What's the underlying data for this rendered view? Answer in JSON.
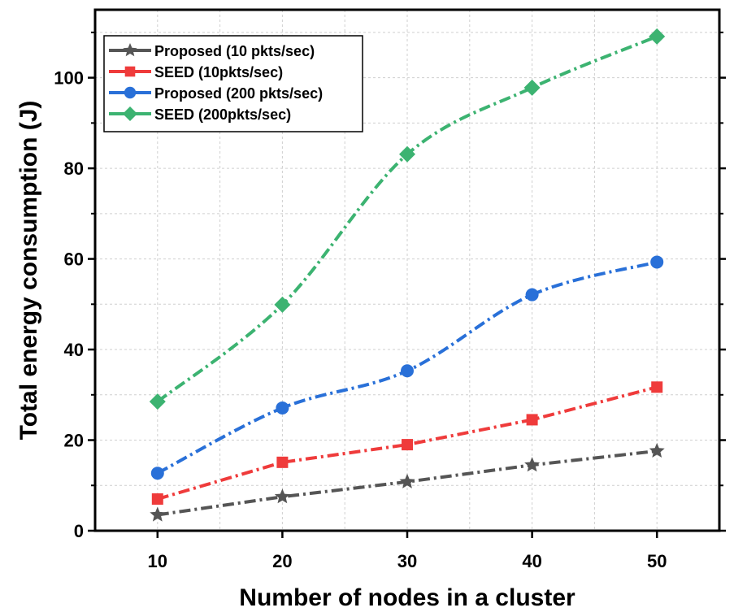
{
  "chart_data": {
    "type": "line",
    "title": "",
    "xlabel": "Number of nodes in a cluster",
    "ylabel": "Total energy consumption (J)",
    "x": [
      10,
      20,
      30,
      40,
      50
    ],
    "xticks": [
      10,
      20,
      30,
      40,
      50
    ],
    "xlim": [
      5,
      55
    ],
    "yticks": [
      0,
      20,
      40,
      60,
      80,
      100
    ],
    "ylim": [
      0,
      115
    ],
    "grid": true,
    "legend_position": "top-left",
    "series": [
      {
        "name": "Proposed (10 pkts/sec)",
        "values": [
          3.5,
          7.5,
          10.8,
          14.5,
          17.6
        ],
        "color": "#555555",
        "marker": "star"
      },
      {
        "name": "SEED (10pkts/sec)",
        "values": [
          7.0,
          15.1,
          19.0,
          24.5,
          31.7
        ],
        "color": "#ef3b3b",
        "marker": "square"
      },
      {
        "name": "Proposed (200 pkts/sec)",
        "values": [
          12.7,
          27.1,
          35.3,
          52.1,
          59.3
        ],
        "color": "#2970d8",
        "marker": "circle"
      },
      {
        "name": "SEED (200pkts/sec)",
        "values": [
          28.5,
          49.9,
          83.1,
          97.8,
          109.1
        ],
        "color": "#3cb371",
        "marker": "diamond"
      }
    ]
  }
}
